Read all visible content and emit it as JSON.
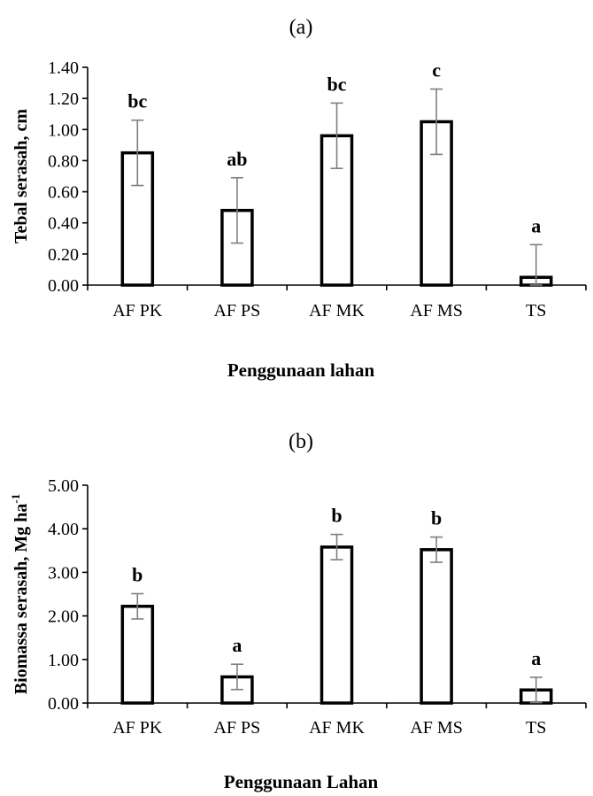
{
  "chart_data": [
    {
      "type": "bar",
      "panel_label": "(a)",
      "categories": [
        "AF PK",
        "AF PS",
        "AF MK",
        "AF MS",
        "TS"
      ],
      "values": [
        0.85,
        0.48,
        0.96,
        1.05,
        0.05
      ],
      "errors": [
        0.21,
        0.21,
        0.21,
        0.21,
        0.21
      ],
      "significance": [
        "bc",
        "ab",
        "bc",
        "c",
        "a"
      ],
      "xlabel": "Penggunaan lahan",
      "ylabel": "Tebal serasah, cm",
      "ylim": [
        0,
        1.4
      ],
      "yticks": [
        "0.00",
        "0.20",
        "0.40",
        "0.60",
        "0.80",
        "1.00",
        "1.20",
        "1.40"
      ],
      "grid": false,
      "bar_fill": "#ffffff",
      "error_color": "#7f7f7f"
    },
    {
      "type": "bar",
      "panel_label": "(b)",
      "categories": [
        "AF PK",
        "AF PS",
        "AF MK",
        "AF MS",
        "TS"
      ],
      "values": [
        2.22,
        0.6,
        3.58,
        3.52,
        0.3
      ],
      "errors": [
        0.29,
        0.29,
        0.29,
        0.29,
        0.29
      ],
      "significance": [
        "b",
        "a",
        "b",
        "b",
        "a"
      ],
      "xlabel": "Penggunaan Lahan",
      "ylabel": "Biomassa serasah, Mg ha",
      "ylabel_sup": "-1",
      "ylim": [
        0,
        5
      ],
      "yticks": [
        "0.00",
        "1.00",
        "2.00",
        "3.00",
        "4.00",
        "5.00"
      ],
      "grid": false,
      "bar_fill": "#ffffff",
      "error_color": "#7f7f7f"
    }
  ]
}
